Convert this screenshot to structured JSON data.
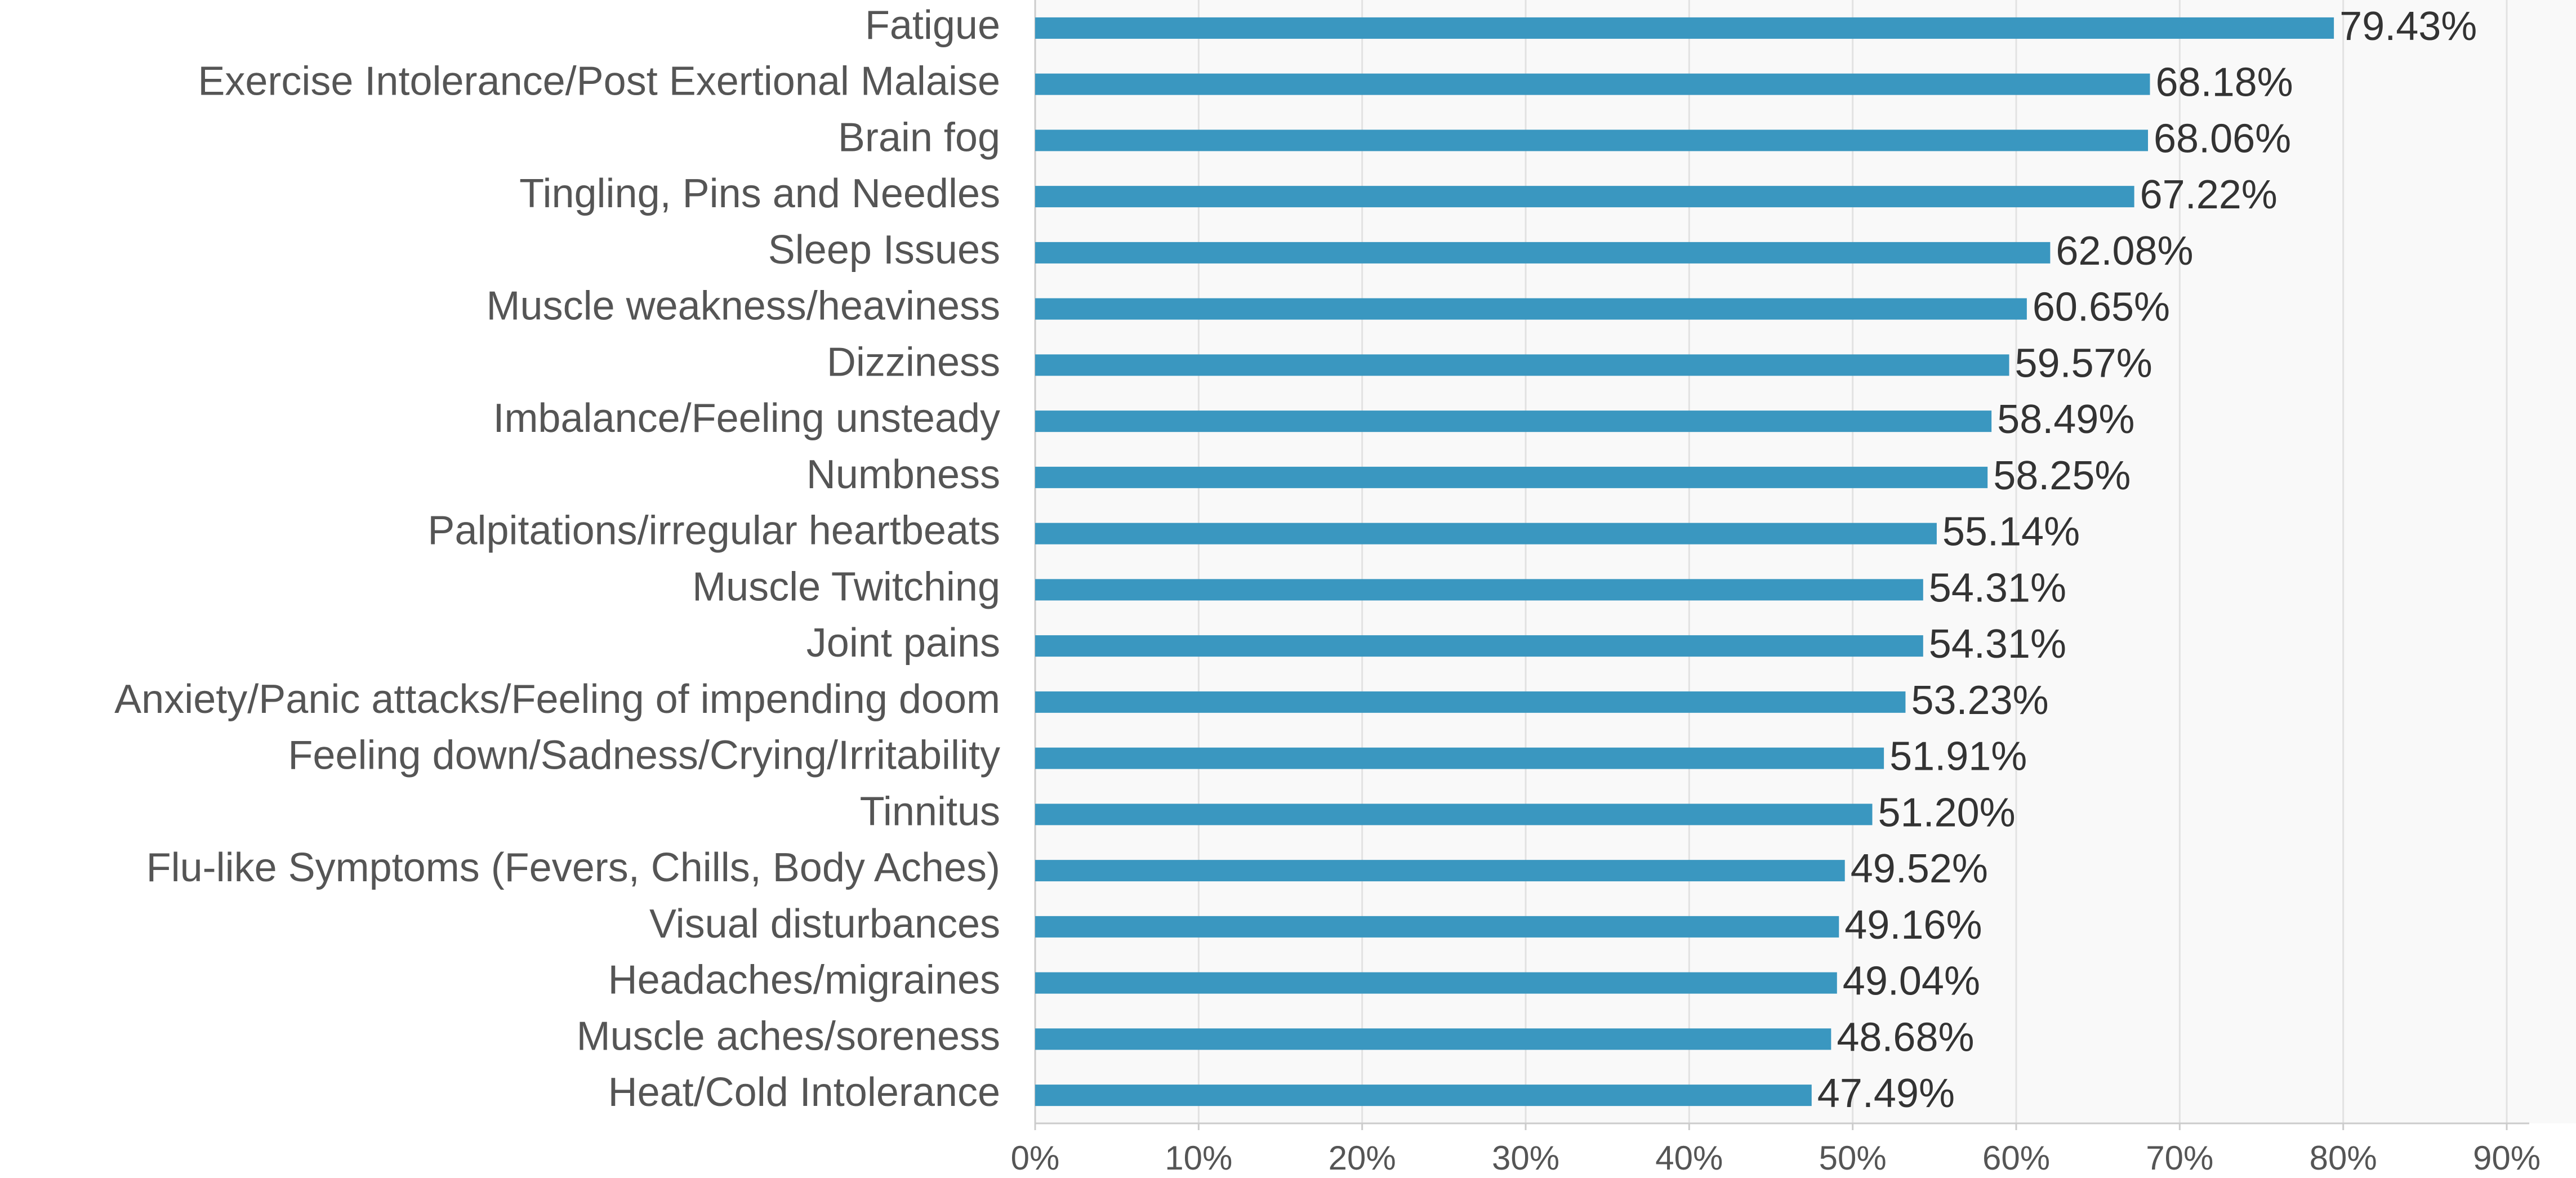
{
  "chart_data": {
    "type": "bar",
    "orientation": "horizontal",
    "categories": [
      "Fatigue",
      "Exercise Intolerance/Post Exertional Malaise",
      "Brain fog",
      "Tingling, Pins and Needles",
      "Sleep Issues",
      "Muscle weakness/heaviness",
      "Dizziness",
      "Imbalance/Feeling unsteady",
      "Numbness",
      "Palpitations/irregular heartbeats",
      "Muscle Twitching",
      "Joint pains",
      "Anxiety/Panic attacks/Feeling of impending doom",
      "Feeling down/Sadness/Crying/Irritability",
      "Tinnitus",
      "Flu-like Symptoms (Fevers, Chills, Body Aches)",
      "Visual disturbances",
      "Headaches/migraines",
      "Muscle aches/soreness",
      "Heat/Cold Intolerance"
    ],
    "values": [
      79.43,
      68.18,
      68.06,
      67.22,
      62.08,
      60.65,
      59.57,
      58.49,
      58.25,
      55.14,
      54.31,
      54.31,
      53.23,
      51.91,
      51.2,
      49.52,
      49.16,
      49.04,
      48.68,
      47.49
    ],
    "value_labels": [
      "79.43%",
      "68.18%",
      "68.06%",
      "67.22%",
      "62.08%",
      "60.65%",
      "59.57%",
      "58.49%",
      "58.25%",
      "55.14%",
      "54.31%",
      "54.31%",
      "53.23%",
      "51.91%",
      "51.20%",
      "49.52%",
      "49.16%",
      "49.04%",
      "48.68%",
      "47.49%"
    ],
    "color": "#3a97c0",
    "xlim": [
      0,
      90
    ],
    "xticks": [
      {
        "value": 0,
        "label": "0%"
      },
      {
        "value": 10,
        "label": "10%"
      },
      {
        "value": 20,
        "label": "20%"
      },
      {
        "value": 30,
        "label": "30%"
      },
      {
        "value": 40,
        "label": "40%"
      },
      {
        "value": 50,
        "label": "50%"
      },
      {
        "value": 60,
        "label": "60%"
      },
      {
        "value": 70,
        "label": "70%"
      },
      {
        "value": 80,
        "label": "80%"
      },
      {
        "value": 90,
        "label": "90%"
      }
    ],
    "grid": true
  }
}
